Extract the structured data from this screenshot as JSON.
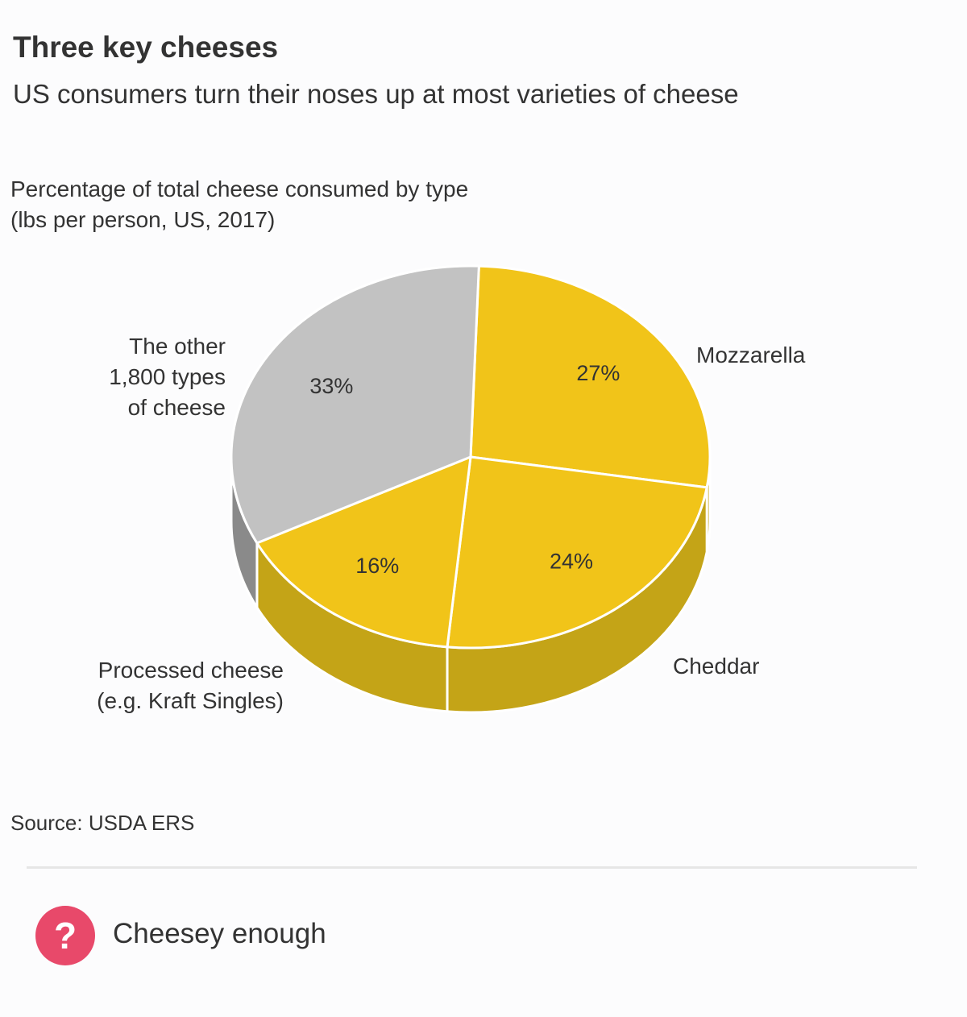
{
  "header": {
    "title": "Three key cheeses",
    "subtitle": "US consumers turn their noses up at most varieties of cheese"
  },
  "chart_data": {
    "type": "pie",
    "title_lines": [
      "Percentage of total cheese consumed by type",
      "(lbs per person, US, 2017)"
    ],
    "slices": [
      {
        "label_lines": [
          "Mozzarella"
        ],
        "value": 27,
        "value_label": "27%",
        "color": "#f1c419"
      },
      {
        "label_lines": [
          "Cheddar"
        ],
        "value": 24,
        "value_label": "24%",
        "color": "#f1c419"
      },
      {
        "label_lines": [
          "Processed cheese",
          "(e.g. Kraft Singles)"
        ],
        "value": 16,
        "value_label": "16%",
        "color": "#f1c419"
      },
      {
        "label_lines": [
          "The other",
          "1,800 types",
          "of cheese"
        ],
        "value": 33,
        "value_label": "33%",
        "color": "#c2c2c2"
      }
    ],
    "side_colors": {
      "highlight": "#c4a417",
      "other": "#8a8a8a"
    },
    "style": "3d"
  },
  "source": "Source: USDA ERS",
  "footer": {
    "icon": "question-mark-icon",
    "icon_glyph": "?",
    "icon_color": "#e8496a",
    "text": "Cheesey enough"
  }
}
